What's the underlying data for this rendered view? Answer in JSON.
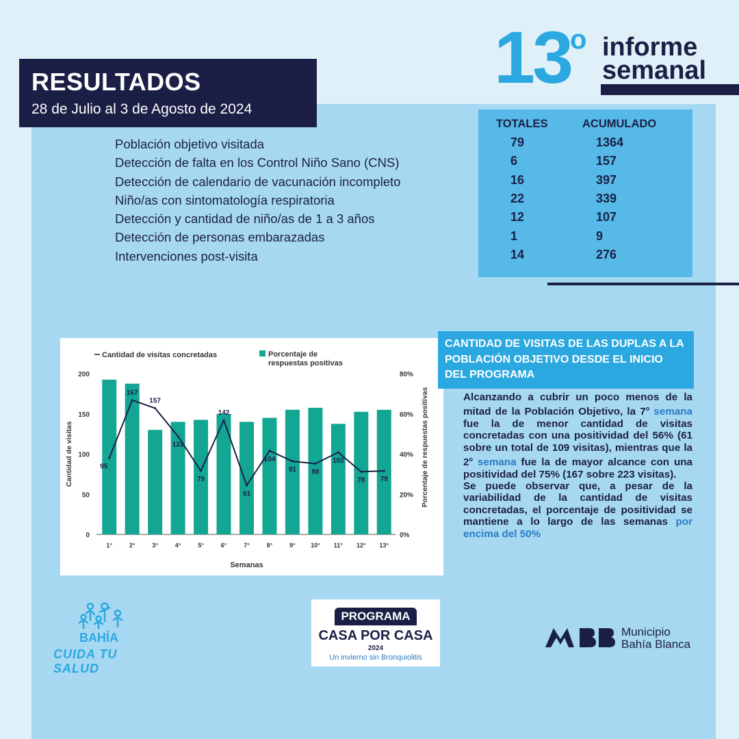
{
  "header": {
    "results_title": "RESULTADOS",
    "results_date": "28 de Julio al 3 de Agosto de 2024",
    "report_number": "13",
    "report_degree": "o",
    "report_word1": "informe",
    "report_word2": "semanal"
  },
  "indicators": [
    "Población objetivo visitada",
    "Detección de falta en los Control Niño Sano (CNS)",
    "Detección de calendario de vacunación incompleto",
    "Niño/as con sintomatología respiratoria",
    "Detección y cantidad de niño/as de 1 a 3 años",
    "Detección de personas embarazadas",
    "Intervenciones post-visita"
  ],
  "totals_table": {
    "headers": {
      "totales": "TOTALES",
      "acumulado": "ACUMULADO"
    },
    "rows": [
      {
        "total": "79",
        "acumulado": "1364"
      },
      {
        "total": "6",
        "acumulado": "157"
      },
      {
        "total": "16",
        "acumulado": "397"
      },
      {
        "total": "22",
        "acumulado": "339"
      },
      {
        "total": "12",
        "acumulado": "107"
      },
      {
        "total": "1",
        "acumulado": "9"
      },
      {
        "total": "14",
        "acumulado": "276"
      }
    ]
  },
  "chart_data": {
    "type": "bar",
    "categories": [
      "1°",
      "2°",
      "3°",
      "4°",
      "5°",
      "6°",
      "7°",
      "8°",
      "9°",
      "10°",
      "11°",
      "12°",
      "13°"
    ],
    "series": [
      {
        "name": "Porcentaje de respuestas positivas",
        "type": "bar",
        "axis": "right",
        "values": [
          77,
          75,
          52,
          56,
          57,
          60,
          56,
          58,
          62,
          63,
          55,
          61,
          62
        ]
      },
      {
        "name": "Cantidad de visitas concretadas",
        "type": "line",
        "axis": "left",
        "values": [
          95,
          167,
          157,
          122,
          79,
          142,
          61,
          104,
          91,
          88,
          102,
          78,
          79
        ]
      }
    ],
    "legend": {
      "line": "Cantidad de visitas concretadas",
      "bar_line1": "Porcentaje de",
      "bar_line2": "respuestas positivas"
    },
    "xlabel": "Semanas",
    "ylabel_left": "Cantidad de visitas",
    "ylabel_right": "Porcentaje de respuestas positivas",
    "yticks_left": [
      "0",
      "50",
      "100",
      "150",
      "200"
    ],
    "yticks_right": [
      "0%",
      "20%",
      "40%",
      "60%",
      "80%"
    ],
    "ylim_left": [
      0,
      200
    ],
    "ylim_right": [
      0,
      80
    ],
    "colors": {
      "bar": "#13a692",
      "line": "#1b1f45"
    },
    "legend_position": "top"
  },
  "analysis": {
    "header": "CANTIDAD DE VISITAS DE LAS DUPLAS A LA POBLACIÓN OBJETIVO DESDE EL INICIO DEL PROGRAMA",
    "p1_a": "Alcanzando a cubrir un poco menos de la mitad de la Población Objetivo, la 7",
    "p1_sup": "o",
    "p1_hl": " semana",
    "p1_b": " fue la de menor cantidad de visitas concretadas con una positividad del 56% (61 sobre un total de 109 visitas), mientras que la 2",
    "p1_sup2": "o",
    "p1_hl2": " semana",
    "p1_c": " fue la de mayor alcance con una positividad del 75% (167 sobre 223 visitas).",
    "p2_a": "Se puede observar que, a pesar de la variabilidad de la cantidad de visitas concretadas, el porcentaje de positividad se mantiene a lo largo de las semanas",
    "p2_hl": " por encima del 50%"
  },
  "footer": {
    "bahia_word": "BAHÍA",
    "bahia_tagline": "CUIDA TU SALUD",
    "casa_program": "PROGRAMA",
    "casa_title": "CASA POR CASA",
    "casa_year": "2024",
    "casa_sub": "Un invierno sin Bronquiolitis",
    "muni_name1": "Municipio",
    "muni_name2": "Bahía Blanca"
  }
}
